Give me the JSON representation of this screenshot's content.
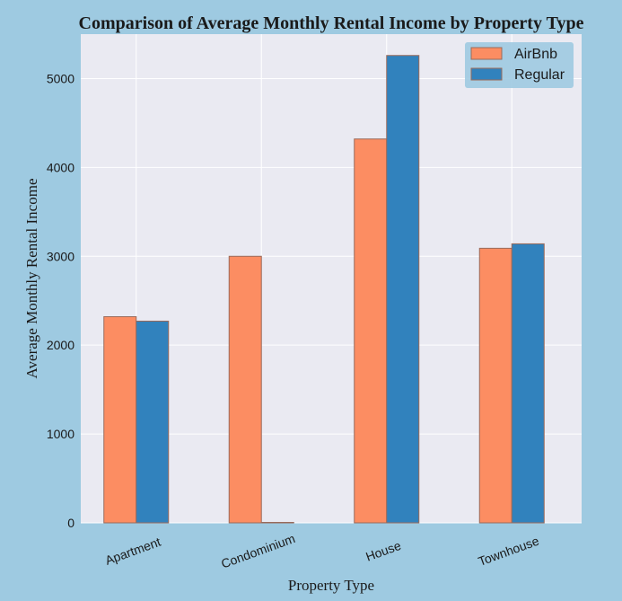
{
  "chart_data": {
    "type": "bar",
    "title": "Comparison of Average Monthly Rental Income by Property Type",
    "xlabel": "Property Type",
    "ylabel": "Average Monthly Rental Income",
    "categories": [
      "Apartment",
      "Condominium",
      "House",
      "Townhouse"
    ],
    "series": [
      {
        "name": "AirBnb",
        "values": [
          2320,
          3000,
          4320,
          3090
        ],
        "color": "#fc8d62"
      },
      {
        "name": "Regular",
        "values": [
          2270,
          0,
          5260,
          3140
        ],
        "color": "#3182bd"
      }
    ],
    "ylim": [
      0,
      5500
    ],
    "yticks": [
      0,
      1000,
      2000,
      3000,
      4000,
      5000
    ],
    "grid": true,
    "legend_position": "top-right",
    "plot_background": "#eaeaf2",
    "figure_background": "#9ecae1",
    "bar_edge_color": "#9a6a5a"
  }
}
